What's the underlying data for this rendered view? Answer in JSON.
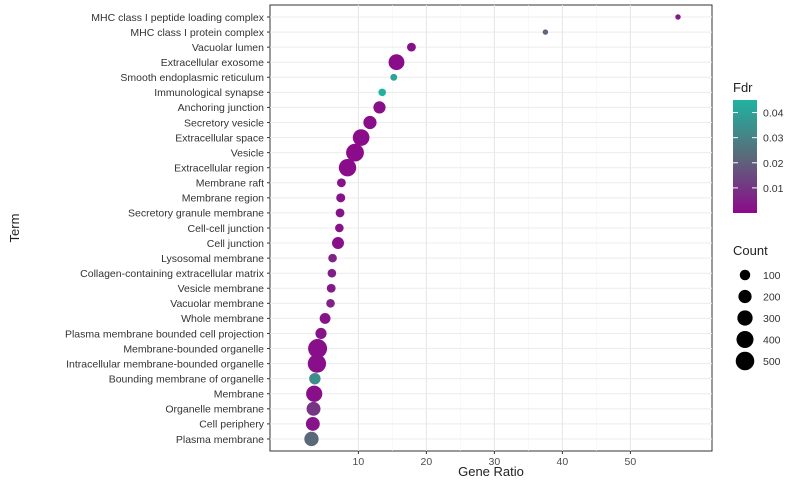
{
  "chart_data": {
    "type": "scatter",
    "title": "",
    "xlabel": "Gene Ratio",
    "ylabel": "Term",
    "xlim": [
      -3,
      62
    ],
    "xticks": [
      10,
      20,
      30,
      40,
      50
    ],
    "grid": true,
    "terms": [
      "MHC class I peptide loading complex",
      "MHC class I protein complex",
      "Vacuolar lumen",
      "Extracellular exosome",
      "Smooth endoplasmic reticulum",
      "Immunological synapse",
      "Anchoring junction",
      "Secretory vesicle",
      "Extracellular space",
      "Vesicle",
      "Extracellular region",
      "Membrane raft",
      "Membrane region",
      "Secretory granule membrane",
      "Cell-cell junction",
      "Cell junction",
      "Lysosomal membrane",
      "Collagen-containing extracellular matrix",
      "Vesicle membrane",
      "Vacuolar membrane",
      "Whole membrane",
      "Plasma membrane bounded cell projection",
      "Membrane-bounded organelle",
      "Intracellular membrane-bounded organelle",
      "Bounding membrane of organelle",
      "Membrane",
      "Organelle membrane",
      "Cell periphery",
      "Plasma membrane"
    ],
    "points": [
      {
        "term": "MHC class I peptide loading complex",
        "gene_ratio": 57.0,
        "count": 5,
        "fdr": 0.004
      },
      {
        "term": "MHC class I protein complex",
        "gene_ratio": 37.5,
        "count": 5,
        "fdr": 0.022
      },
      {
        "term": "Vacuolar lumen",
        "gene_ratio": 17.8,
        "count": 55,
        "fdr": 0.001
      },
      {
        "term": "Extracellular exosome",
        "gene_ratio": 15.6,
        "count": 330,
        "fdr": 0.0005
      },
      {
        "term": "Smooth endoplasmic reticulum",
        "gene_ratio": 15.2,
        "count": 20,
        "fdr": 0.04
      },
      {
        "term": "Immunological synapse",
        "gene_ratio": 13.5,
        "count": 30,
        "fdr": 0.044
      },
      {
        "term": "Anchoring junction",
        "gene_ratio": 13.1,
        "count": 160,
        "fdr": 0.001
      },
      {
        "term": "Secretory vesicle",
        "gene_ratio": 11.7,
        "count": 200,
        "fdr": 0.001
      },
      {
        "term": "Extracellular space",
        "gene_ratio": 10.4,
        "count": 380,
        "fdr": 0.0005
      },
      {
        "term": "Vesicle",
        "gene_ratio": 9.5,
        "count": 450,
        "fdr": 0.0005
      },
      {
        "term": "Extracellular region",
        "gene_ratio": 8.4,
        "count": 420,
        "fdr": 0.0005
      },
      {
        "term": "Membrane raft",
        "gene_ratio": 7.5,
        "count": 55,
        "fdr": 0.002
      },
      {
        "term": "Membrane region",
        "gene_ratio": 7.4,
        "count": 60,
        "fdr": 0.002
      },
      {
        "term": "Secretory granule membrane",
        "gene_ratio": 7.3,
        "count": 55,
        "fdr": 0.002
      },
      {
        "term": "Cell-cell junction",
        "gene_ratio": 7.2,
        "count": 50,
        "fdr": 0.002
      },
      {
        "term": "Cell junction",
        "gene_ratio": 7.0,
        "count": 150,
        "fdr": 0.001
      },
      {
        "term": "Lysosomal membrane",
        "gene_ratio": 6.2,
        "count": 50,
        "fdr": 0.006
      },
      {
        "term": "Collagen-containing extracellular matrix",
        "gene_ratio": 6.1,
        "count": 50,
        "fdr": 0.005
      },
      {
        "term": "Vesicle membrane",
        "gene_ratio": 6.0,
        "count": 55,
        "fdr": 0.004
      },
      {
        "term": "Vacuolar membrane",
        "gene_ratio": 5.9,
        "count": 50,
        "fdr": 0.006
      },
      {
        "term": "Whole membrane",
        "gene_ratio": 5.1,
        "count": 110,
        "fdr": 0.002
      },
      {
        "term": "Plasma membrane bounded cell projection",
        "gene_ratio": 4.5,
        "count": 120,
        "fdr": 0.002
      },
      {
        "term": "Membrane-bounded organelle",
        "gene_ratio": 4.0,
        "count": 530,
        "fdr": 0.001
      },
      {
        "term": "Intracellular membrane-bounded organelle",
        "gene_ratio": 3.9,
        "count": 480,
        "fdr": 0.001
      },
      {
        "term": "Bounding membrane of organelle",
        "gene_ratio": 3.6,
        "count": 130,
        "fdr": 0.033
      },
      {
        "term": "Membrane",
        "gene_ratio": 3.5,
        "count": 350,
        "fdr": 0.001
      },
      {
        "term": "Organelle membrane",
        "gene_ratio": 3.4,
        "count": 230,
        "fdr": 0.01
      },
      {
        "term": "Cell periphery",
        "gene_ratio": 3.3,
        "count": 230,
        "fdr": 0.002
      },
      {
        "term": "Plasma membrane",
        "gene_ratio": 3.1,
        "count": 250,
        "fdr": 0.022
      }
    ],
    "legend_fdr": {
      "title": "Fdr",
      "ticks": [
        0.01,
        0.02,
        0.03,
        0.04
      ],
      "tick_labels": [
        "0.01",
        "0.02",
        "0.03",
        "0.04"
      ],
      "range": [
        0.0,
        0.045
      ],
      "color_low": "#8b0a8b",
      "color_mid": "#5a6a7a",
      "color_high": "#20b3a0"
    },
    "legend_count": {
      "title": "Count",
      "values": [
        100,
        200,
        300,
        400,
        500
      ],
      "labels": [
        "100",
        "200",
        "300",
        "400",
        "500"
      ]
    },
    "legend_placement": "right"
  }
}
